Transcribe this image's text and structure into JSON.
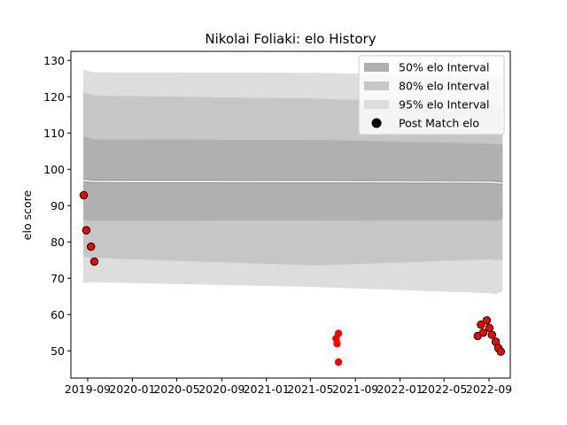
{
  "chart_data": {
    "type": "scatter",
    "title": "Nikolai Foliaki: elo History",
    "xlabel": "",
    "ylabel": "elo score",
    "ylim": [
      42.5,
      132.5
    ],
    "xlim": [
      "2019-07-17",
      "2022-10-29"
    ],
    "x_ticks": [
      "2019-09",
      "2020-01",
      "2020-05",
      "2020-09",
      "2021-01",
      "2021-05",
      "2021-09",
      "2022-01",
      "2022-05",
      "2022-09"
    ],
    "y_ticks": [
      50,
      60,
      70,
      80,
      90,
      100,
      110,
      120,
      130
    ],
    "grid": false,
    "legend_position": "top-right",
    "legend": [
      {
        "label": "50% elo Interval",
        "kind": "band",
        "color": "#b0b0b0"
      },
      {
        "label": "80% elo Interval",
        "kind": "band",
        "color": "#c6c6c6"
      },
      {
        "label": "95% elo Interval",
        "kind": "band",
        "color": "#dddddd"
      },
      {
        "label": "Post Match elo",
        "kind": "marker",
        "color": "#000000"
      }
    ],
    "band_dates": [
      "2019-08-20",
      "2019-09-20",
      "2021-05-15",
      "2022-09-01",
      "2022-09-22",
      "2022-10-08"
    ],
    "mean_elo": [
      96.9,
      96.7,
      96.6,
      96.5,
      96.3,
      96.2
    ],
    "interval_50": {
      "lower": [
        86.0,
        85.8,
        85.9,
        86.0,
        85.8,
        86.3
      ],
      "upper": [
        109.0,
        108.2,
        108.1,
        107.1,
        106.9,
        106.9
      ]
    },
    "interval_80": {
      "lower": [
        76.0,
        75.6,
        73.5,
        75.2,
        75.0,
        75.0
      ],
      "upper": [
        121.2,
        120.3,
        119.5,
        117.8,
        117.5,
        117.5
      ]
    },
    "interval_95": {
      "lower": [
        68.8,
        68.9,
        67.6,
        65.9,
        65.6,
        66.5
      ],
      "upper": [
        127.4,
        126.7,
        126.6,
        125.6,
        125.3,
        125.3
      ]
    },
    "point_color": "#ff0000",
    "series": [
      {
        "name": "Post Match elo",
        "points": [
          {
            "x": "2019-08-21",
            "y": 92.9,
            "edge": true
          },
          {
            "x": "2019-08-28",
            "y": 83.2,
            "edge": true
          },
          {
            "x": "2019-09-10",
            "y": 78.7,
            "edge": true
          },
          {
            "x": "2019-09-19",
            "y": 74.6,
            "edge": true
          },
          {
            "x": "2021-07-10",
            "y": 53.4,
            "edge": false
          },
          {
            "x": "2021-07-13",
            "y": 52.0,
            "edge": false
          },
          {
            "x": "2021-07-17",
            "y": 54.8,
            "edge": false
          },
          {
            "x": "2021-07-17",
            "y": 46.9,
            "edge": false
          },
          {
            "x": "2022-08-01",
            "y": 54.1,
            "edge": true
          },
          {
            "x": "2022-08-10",
            "y": 57.2,
            "edge": true
          },
          {
            "x": "2022-08-16",
            "y": 55.0,
            "edge": true
          },
          {
            "x": "2022-08-26",
            "y": 58.4,
            "edge": true
          },
          {
            "x": "2022-09-02",
            "y": 56.3,
            "edge": true
          },
          {
            "x": "2022-09-09",
            "y": 54.4,
            "edge": true
          },
          {
            "x": "2022-09-19",
            "y": 52.5,
            "edge": true
          },
          {
            "x": "2022-09-26",
            "y": 50.8,
            "edge": true
          },
          {
            "x": "2022-10-03",
            "y": 49.8,
            "edge": true
          }
        ]
      }
    ]
  }
}
